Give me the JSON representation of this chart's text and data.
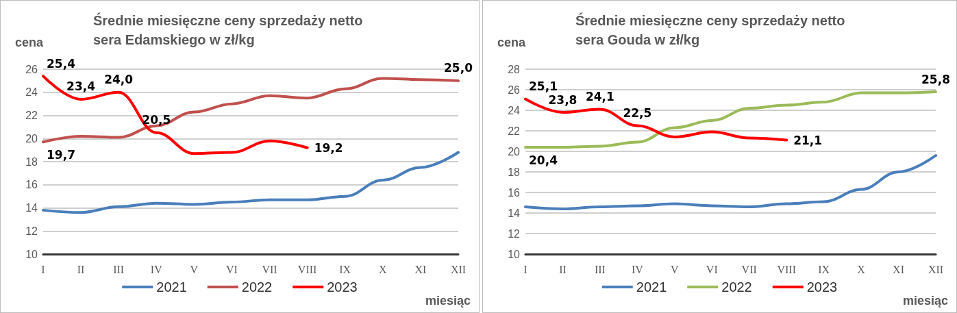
{
  "chart_data": [
    {
      "type": "line",
      "title": "Średnie miesięczne ceny sprzedaży netto\nsera Edamskiego w zł/kg",
      "ylabel": "cena",
      "xlabel": "miesiąc",
      "categories": [
        "I",
        "II",
        "III",
        "IV",
        "V",
        "VI",
        "VII",
        "VIII",
        "IX",
        "X",
        "XI",
        "XII"
      ],
      "ylim": [
        10,
        26
      ],
      "yticks": [
        10,
        12,
        14,
        16,
        18,
        20,
        22,
        24,
        26
      ],
      "grid": "y",
      "legend": "bottom",
      "line_style": "solid",
      "marker": "none",
      "series": [
        {
          "name": "2021",
          "color": "#4a7ebb",
          "values": [
            13.8,
            13.6,
            14.1,
            14.4,
            14.3,
            14.5,
            14.7,
            14.7,
            15.0,
            16.4,
            17.5,
            18.8
          ]
        },
        {
          "name": "2022",
          "color": "#c0504d",
          "values": [
            19.7,
            20.2,
            20.1,
            21.1,
            22.3,
            23.0,
            23.7,
            23.5,
            24.3,
            25.2,
            25.1,
            25.0
          ],
          "value_labels": [
            "19,7",
            null,
            null,
            null,
            null,
            null,
            null,
            null,
            null,
            null,
            null,
            "25,0"
          ]
        },
        {
          "name": "2023",
          "color": "#ff0000",
          "values": [
            25.4,
            23.4,
            24.0,
            20.5,
            18.7,
            18.8,
            19.8,
            19.2,
            null,
            null,
            null,
            null
          ],
          "value_labels": [
            "25,4",
            "23,4",
            "24,0",
            "20,5",
            null,
            null,
            null,
            "19,2",
            null,
            null,
            null,
            null
          ]
        }
      ]
    },
    {
      "type": "line",
      "title": "Średnie miesięczne ceny sprzedaży netto\nsera Gouda w zł/kg",
      "ylabel": "cena",
      "xlabel": "miesiąc",
      "categories": [
        "I",
        "II",
        "III",
        "IV",
        "V",
        "VI",
        "VII",
        "VIII",
        "IX",
        "X",
        "XI",
        "XII"
      ],
      "ylim": [
        10,
        28
      ],
      "yticks": [
        10,
        12,
        14,
        16,
        18,
        20,
        22,
        24,
        26,
        28
      ],
      "grid": "y",
      "legend": "bottom",
      "line_style": "solid",
      "marker": "none",
      "series": [
        {
          "name": "2021",
          "color": "#4a7ebb",
          "values": [
            14.6,
            14.4,
            14.6,
            14.7,
            14.9,
            14.7,
            14.6,
            14.9,
            15.1,
            16.3,
            18.0,
            19.6
          ]
        },
        {
          "name": "2022",
          "color": "#9bbb59",
          "values": [
            20.4,
            20.4,
            20.5,
            20.9,
            22.3,
            23.0,
            24.2,
            24.5,
            24.8,
            25.7,
            25.7,
            25.8
          ],
          "value_labels": [
            "20,4",
            null,
            null,
            null,
            null,
            null,
            null,
            null,
            null,
            null,
            null,
            "25,8"
          ]
        },
        {
          "name": "2023",
          "color": "#ff0000",
          "values": [
            25.1,
            23.8,
            24.1,
            22.5,
            21.4,
            21.9,
            21.3,
            21.1,
            null,
            null,
            null,
            null
          ],
          "value_labels": [
            "25,1",
            "23,8",
            "24,1",
            "22,5",
            null,
            null,
            null,
            "21,1",
            null,
            null,
            null,
            null
          ]
        }
      ]
    }
  ]
}
